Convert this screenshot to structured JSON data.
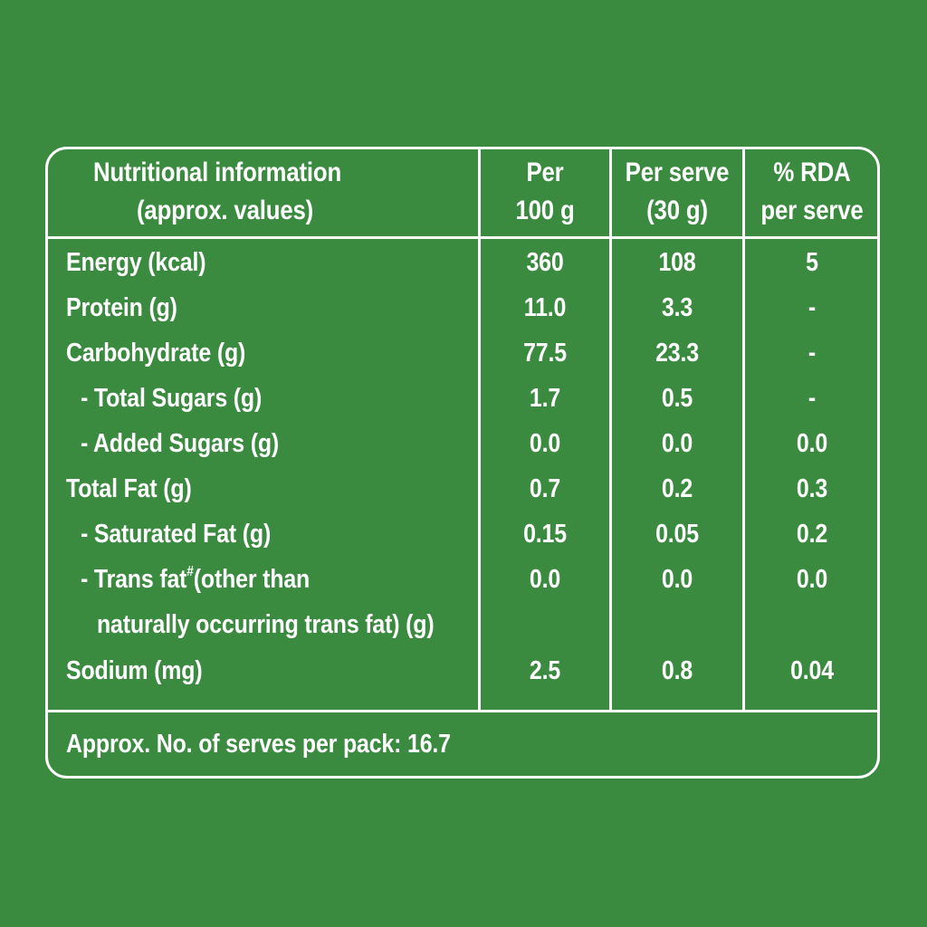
{
  "header": {
    "col1_line1": "Nutritional information",
    "col1_line2": "(approx. values)",
    "col2_line1": "Per",
    "col2_line2": "100 g",
    "col3_line1": "Per serve",
    "col3_line2": "(30 g)",
    "col4_line1": "% RDA",
    "col4_line2": "per serve"
  },
  "rows": [
    {
      "label": "Energy (kcal)",
      "per100": "360",
      "perServe": "108",
      "rda": "5"
    },
    {
      "label": "Protein (g)",
      "per100": "11.0",
      "perServe": "3.3",
      "rda": "-"
    },
    {
      "label": "Carbohydrate (g)",
      "per100": "77.5",
      "perServe": "23.3",
      "rda": "-"
    },
    {
      "label": "- Total Sugars (g)",
      "per100": "1.7",
      "perServe": "0.5",
      "rda": "-"
    },
    {
      "label": "- Added Sugars (g)",
      "per100": "0.0",
      "perServe": "0.0",
      "rda": "0.0"
    },
    {
      "label": "Total Fat (g)",
      "per100": "0.7",
      "perServe": "0.2",
      "rda": "0.3"
    },
    {
      "label": "- Saturated Fat (g)",
      "per100": "0.15",
      "perServe": "0.05",
      "rda": "0.2"
    },
    {
      "label_part1": "- Trans fat",
      "label_sup": "#",
      "label_part2": "(other than",
      "label_line2": "naturally occurring trans fat) (g)",
      "per100": "0.0",
      "perServe": "0.0",
      "rda": "0.0"
    },
    {
      "label": "Sodium (mg)",
      "per100": "2.5",
      "perServe": "0.8",
      "rda": "0.04"
    }
  ],
  "footer": {
    "serves_text": "Approx. No. of serves per pack: 16.7"
  },
  "colors": {
    "background": "#3a8a3f",
    "text": "#ffffff"
  }
}
